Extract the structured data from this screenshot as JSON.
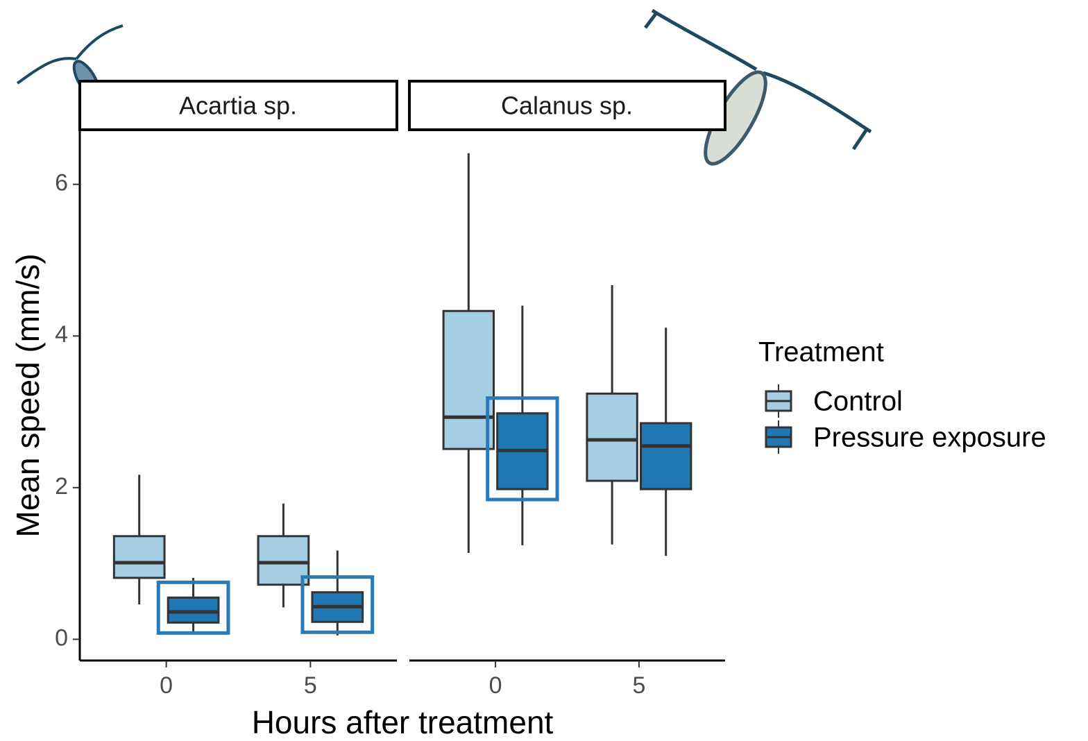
{
  "chart_data": [
    {
      "type": "box",
      "title": "Acartia sp.",
      "x_label": "Hours after treatment",
      "y_label": "Mean speed (mm/s)",
      "legend_title": "Treatment",
      "categories": [
        "0",
        "5"
      ],
      "ylim": [
        -0.28,
        6.72
      ],
      "yticks": [
        0,
        2,
        4,
        6
      ],
      "series": [
        {
          "name": "Control",
          "color": "#a6cee3",
          "highlight": [
            false,
            false
          ],
          "values": [
            {
              "min": 0.46,
              "q1": 0.81,
              "median": 1.01,
              "q3": 1.36,
              "max": 2.17
            },
            {
              "min": 0.42,
              "q1": 0.72,
              "median": 1.01,
              "q3": 1.36,
              "max": 1.79
            }
          ]
        },
        {
          "name": "Pressure exposure",
          "color": "#1f78b4",
          "highlight": [
            true,
            true
          ],
          "values": [
            {
              "min": 0.07,
              "q1": 0.22,
              "median": 0.36,
              "q3": 0.55,
              "max": 0.81
            },
            {
              "min": 0.05,
              "q1": 0.23,
              "median": 0.43,
              "q3": 0.62,
              "max": 1.17
            }
          ]
        }
      ]
    },
    {
      "type": "box",
      "title": "Calanus sp.",
      "categories": [
        "0",
        "5"
      ],
      "series": [
        {
          "name": "Control",
          "color": "#a6cee3",
          "highlight": [
            false,
            false
          ],
          "values": [
            {
              "min": 1.14,
              "q1": 2.51,
              "median": 2.93,
              "q3": 4.33,
              "max": 6.41
            },
            {
              "min": 1.25,
              "q1": 2.09,
              "median": 2.63,
              "q3": 3.24,
              "max": 4.67
            }
          ]
        },
        {
          "name": "Pressure exposure",
          "color": "#1f78b4",
          "highlight": [
            true,
            false
          ],
          "values": [
            {
              "min": 1.24,
              "q1": 1.98,
              "median": 2.49,
              "q3": 2.98,
              "max": 4.4
            },
            {
              "min": 1.1,
              "q1": 1.98,
              "median": 2.55,
              "q3": 2.85,
              "max": 4.11
            }
          ]
        }
      ]
    }
  ]
}
